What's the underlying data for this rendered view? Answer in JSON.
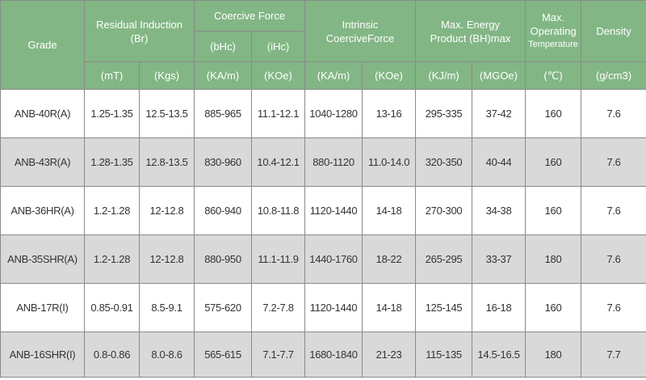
{
  "header": {
    "grade": "Grade",
    "residual_induction": "Residual Induction",
    "residual_induction_sym": "(Br)",
    "coercive_force": "Coercive Force",
    "bhc": "(bHc)",
    "ihc": "(iHc)",
    "intrinsic_coercive": "Intrinsic CoerciveForce",
    "max_energy_line1": "Max. Energy",
    "max_energy_line2": "Product (BH)max",
    "max_op_line1": "Max.",
    "max_op_line2": "Operating",
    "max_op_line3": "Temperature",
    "density": "Density",
    "units": [
      "(mT)",
      "(Kgs)",
      "(KA/m)",
      "(KOe)",
      "(KA/m)",
      "(KOe)",
      "(KJ/m)",
      "(MGOe)",
      "(℃)",
      "(g/cm3)"
    ]
  },
  "rows": [
    [
      "ANB-40R(A)",
      "1.25-1.35",
      "12.5-13.5",
      "885-965",
      "11.1-12.1",
      "1040-1280",
      "13-16",
      "295-335",
      "37-42",
      "160",
      "7.6"
    ],
    [
      "ANB-43R(A)",
      "1.28-1.35",
      "12.8-13.5",
      "830-960",
      "10.4-12.1",
      "880-1120",
      "11.0-14.0",
      "320-350",
      "40-44",
      "160",
      "7.6"
    ],
    [
      "ANB-36HR(A)",
      "1.2-1.28",
      "12-12.8",
      "860-940",
      "10.8-11.8",
      "1120-1440",
      "14-18",
      "270-300",
      "34-38",
      "160",
      "7.6"
    ],
    [
      "ANB-35SHR(A)",
      "1.2-1.28",
      "12-12.8",
      "880-950",
      "11.1-11.9",
      "1440-1760",
      "18-22",
      "265-295",
      "33-37",
      "180",
      "7.6"
    ],
    [
      "ANB-17R(I)",
      "0.85-0.91",
      "8.5-9.1",
      "575-620",
      "7.2-7.8",
      "1120-1440",
      "14-18",
      "125-145",
      "16-18",
      "160",
      "7.6"
    ],
    [
      "ANB-16SHR(I)",
      "0.8-0.86",
      "8.0-8.6",
      "565-615",
      "7.1-7.7",
      "1680-1840",
      "21-23",
      "115-135",
      "14.5-16.5",
      "180",
      "7.7"
    ]
  ],
  "colors": {
    "header_bg": "#82b684",
    "header_text": "#ffffff",
    "shaded_row": "#d9d9d9",
    "border": "#8a8a8a"
  }
}
